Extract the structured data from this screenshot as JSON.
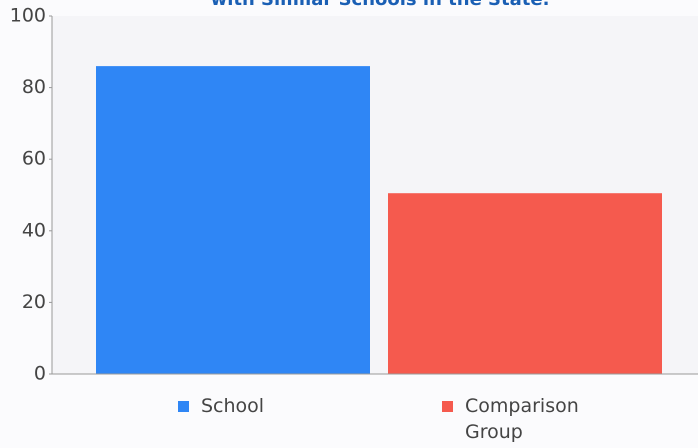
{
  "chart_data": {
    "type": "bar",
    "title": "with Similar Schools in the State.",
    "series": [
      {
        "name": "School",
        "color": "#2f86f5",
        "values": [
          86
        ]
      },
      {
        "name": "Comparison Group",
        "color": "#f55a4e",
        "values": [
          50.5
        ]
      }
    ],
    "ylim": [
      0,
      100
    ],
    "yticks": [
      0,
      20,
      40,
      60,
      80,
      100
    ]
  }
}
